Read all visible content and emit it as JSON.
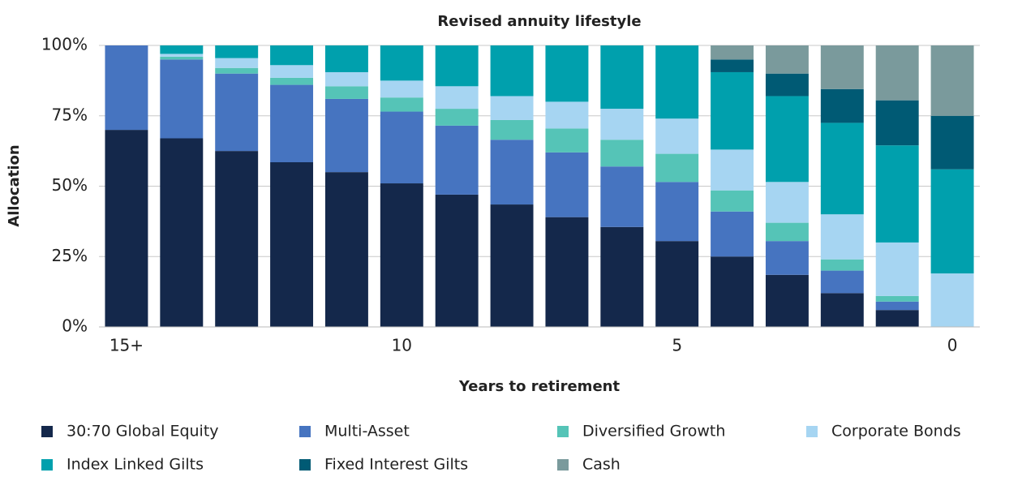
{
  "chart_data": {
    "type": "stacked_bar",
    "title": "Revised annuity lifestyle",
    "x_label": "Years to retirement",
    "y_label": "Allocation",
    "categories": [
      "15+",
      null,
      null,
      null,
      null,
      "10",
      null,
      null,
      null,
      null,
      "5",
      null,
      null,
      null,
      null,
      "0"
    ],
    "ylim": [
      0,
      100
    ],
    "yticks": [
      {
        "value": 0,
        "label": "0%"
      },
      {
        "value": 25,
        "label": "25%"
      },
      {
        "value": 50,
        "label": "50%"
      },
      {
        "value": 75,
        "label": "75%"
      },
      {
        "value": 100,
        "label": "100%"
      }
    ],
    "grid": true,
    "legend": "bottom",
    "series": [
      {
        "name": "30:70 Global Equity",
        "color": "#14284b",
        "values": [
          70,
          67,
          62.5,
          58.5,
          55,
          51,
          47,
          43.5,
          39,
          35.5,
          30.5,
          25,
          18.5,
          12,
          6,
          0
        ]
      },
      {
        "name": "Multi-Asset",
        "color": "#4674c0",
        "values": [
          30,
          28,
          27.5,
          27.5,
          26,
          25.5,
          24.5,
          23,
          23,
          21.5,
          21,
          16,
          12,
          8,
          3,
          0
        ]
      },
      {
        "name": "Diversified Growth",
        "color": "#55c4b7",
        "values": [
          0,
          1,
          2,
          2.5,
          4.5,
          5,
          6,
          7,
          8.5,
          9.5,
          10,
          7.5,
          6.5,
          4,
          2,
          0
        ]
      },
      {
        "name": "Corporate Bonds",
        "color": "#a6d5f2",
        "values": [
          0,
          1,
          3.5,
          4.5,
          5,
          6,
          8,
          8.5,
          9.5,
          11,
          12.5,
          14.5,
          14.5,
          16,
          19,
          19
        ]
      },
      {
        "name": "Index Linked Gilts",
        "color": "#00a0ad",
        "values": [
          0,
          3,
          4.5,
          7,
          9.5,
          12.5,
          14.5,
          18,
          20,
          22.5,
          26,
          27.5,
          30.5,
          32.5,
          34.5,
          37
        ]
      },
      {
        "name": "Fixed Interest Gilts",
        "color": "#005a74",
        "values": [
          0,
          0,
          0,
          0,
          0,
          0,
          0,
          0,
          0,
          0,
          0,
          4.5,
          8,
          12,
          16,
          19
        ]
      },
      {
        "name": "Cash",
        "color": "#7a9a9c",
        "values": [
          0,
          0,
          0,
          0,
          0,
          0,
          0,
          0,
          0,
          0,
          0,
          5,
          10,
          15.5,
          19.5,
          25
        ]
      }
    ]
  }
}
